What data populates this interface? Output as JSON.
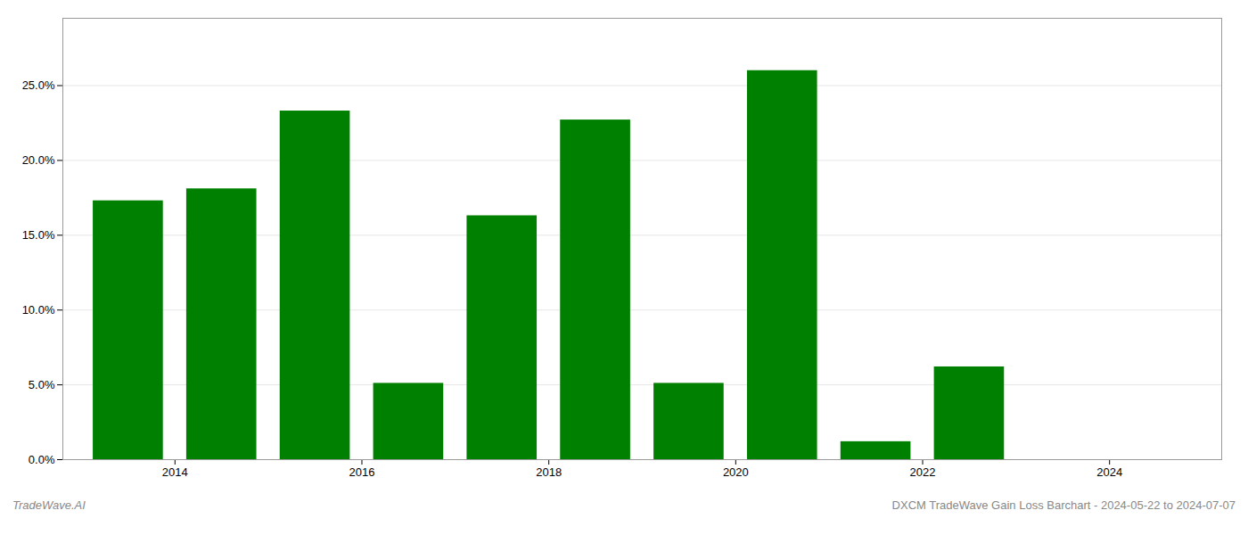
{
  "chart_data": {
    "type": "bar",
    "title": "DXCM TradeWave Gain Loss Barchart - 2024-05-22 to 2024-07-07",
    "annotations": [
      "TradeWave.AI"
    ],
    "x": [
      2013.5,
      2014.5,
      2015.5,
      2016.5,
      2017.5,
      2018.5,
      2019.5,
      2020.5,
      2021.5,
      2022.5,
      2023.5
    ],
    "values": [
      0.173,
      0.181,
      0.233,
      0.051,
      0.163,
      0.227,
      0.051,
      0.26,
      0.012,
      0.062,
      0.0
    ],
    "color": "#008000",
    "xlim": [
      2012.8,
      2025.2
    ],
    "xticks": [
      2014,
      2016,
      2018,
      2020,
      2022,
      2024
    ],
    "ylim": [
      0,
      0.295
    ],
    "yticks": [
      {
        "value": 0.0,
        "label": "0.0%"
      },
      {
        "value": 0.05,
        "label": "5.0%"
      },
      {
        "value": 0.1,
        "label": "10.0%"
      },
      {
        "value": 0.15,
        "label": "15.0%"
      },
      {
        "value": 0.2,
        "label": "20.0%"
      },
      {
        "value": 0.25,
        "label": "25.0%"
      }
    ],
    "grid": "y"
  }
}
